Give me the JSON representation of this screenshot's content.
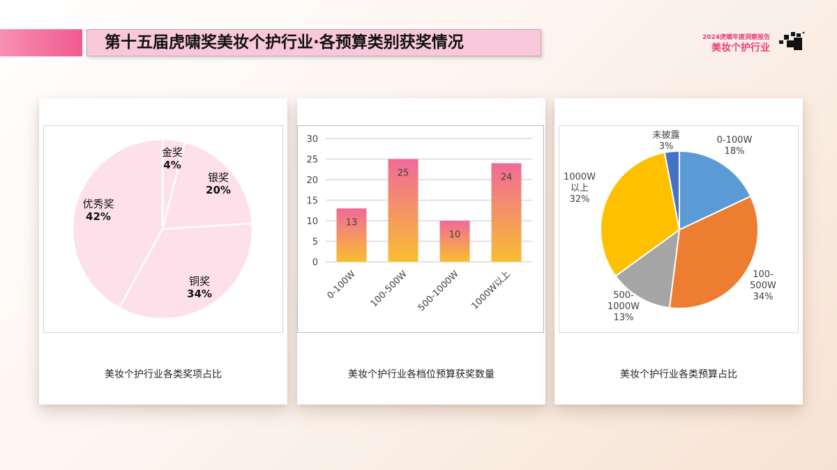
{
  "header": {
    "title": "第十五届虎啸奖美妆个护行业·各预算类别获奖情况",
    "brand_year": "2024虎啸年度洞察报告",
    "brand_name": "美妆个护行业"
  },
  "colors": {
    "accent_pink": "#f05b8f",
    "title_bg": "#f9c8da",
    "brand_pink": "#e8407a",
    "pie1_fill": "#fde0ea",
    "bar_gradient_top": "#f06a98",
    "bar_gradient_bottom": "#f9bd32"
  },
  "chart_data": [
    {
      "type": "pie",
      "caption": "美妆个护行业各类奖项占比",
      "slices": [
        {
          "label": "金奖",
          "value": 4,
          "pct_label": "4%",
          "color": "#fde0ea"
        },
        {
          "label": "银奖",
          "value": 20,
          "pct_label": "20%",
          "color": "#fde0ea"
        },
        {
          "label": "铜奖",
          "value": 34,
          "pct_label": "34%",
          "color": "#fde0ea"
        },
        {
          "label": "优秀奖",
          "value": 42,
          "pct_label": "42%",
          "color": "#fde0ea"
        }
      ]
    },
    {
      "type": "bar",
      "caption": "美妆个护行业各档位预算获奖数量",
      "categories": [
        "0-100W",
        "100-500W",
        "500-1000W",
        "1000W以上"
      ],
      "values": [
        13,
        25,
        10,
        24
      ],
      "ylim": [
        0,
        30
      ],
      "yticks": [
        0,
        5,
        10,
        15,
        20,
        25,
        30
      ],
      "grid": true
    },
    {
      "type": "pie",
      "caption": "美妆个护行业各类预算占比",
      "slices": [
        {
          "label": "0-100W",
          "value": 18,
          "pct_label": "18%",
          "color": "#5b9bd5"
        },
        {
          "label": "100-500W",
          "value": 34,
          "pct_label": "34%",
          "color": "#ed7d31"
        },
        {
          "label": "500-1000W",
          "value": 13,
          "pct_label": "13%",
          "color": "#a5a5a5"
        },
        {
          "label": "1000W以上",
          "value": 32,
          "pct_label": "32%",
          "color": "#ffc000"
        },
        {
          "label": "未披露",
          "value": 3,
          "pct_label": "3%",
          "color": "#4472c4"
        }
      ]
    }
  ]
}
